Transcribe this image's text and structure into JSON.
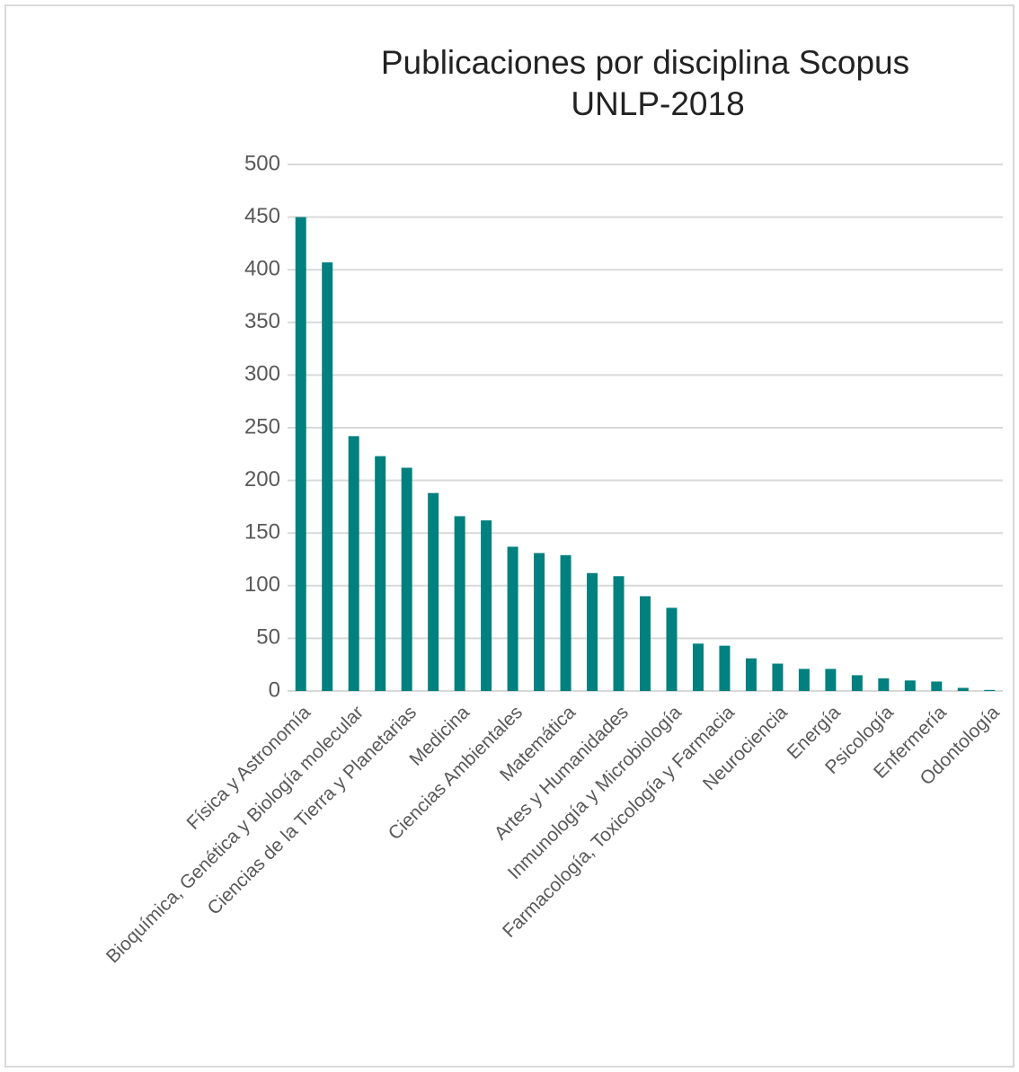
{
  "chart_data": {
    "type": "bar",
    "title": [
      "Publicaciones por disciplina Scopus",
      "UNLP-2018"
    ],
    "categories": [
      "Física y Astronomía",
      null,
      "Bioquímica, Genética y Biología molecular",
      null,
      "Ciencias de la Tierra y Planetarias",
      null,
      "Medicina",
      null,
      "Ciencias Ambientales",
      null,
      "Matemática",
      null,
      "Artes y Humanidades",
      null,
      "Inmunología y Microbiología",
      null,
      "Farmacología, Toxicología y Farmacia",
      null,
      "Neurociencia",
      null,
      "Energía",
      null,
      "Psicología",
      null,
      "Enfermería",
      null,
      "Odontología"
    ],
    "values": [
      450,
      407,
      242,
      223,
      212,
      188,
      166,
      162,
      137,
      131,
      129,
      112,
      109,
      90,
      79,
      45,
      43,
      31,
      26,
      21,
      21,
      15,
      12,
      10,
      9,
      3,
      1
    ],
    "color": "#00807f",
    "ylim": [
      0,
      500
    ],
    "yticks": [
      0,
      50,
      100,
      150,
      200,
      250,
      300,
      350,
      400,
      450,
      500
    ],
    "grid": true
  }
}
